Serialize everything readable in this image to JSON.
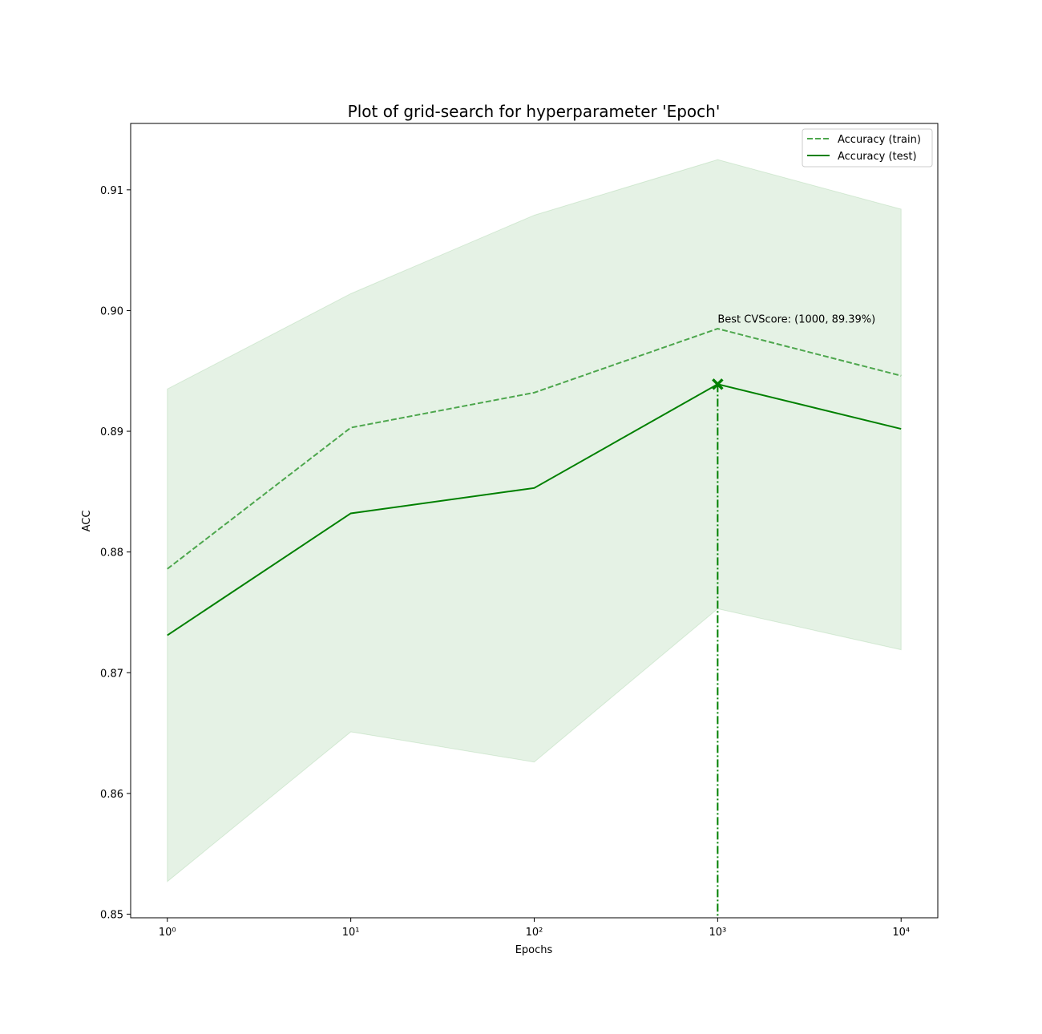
{
  "chart_data": {
    "type": "line",
    "title": "Plot of grid-search for hyperparameter 'Epoch'",
    "xlabel": "Epochs",
    "ylabel": "ACC",
    "x": [
      1,
      10,
      100,
      1000,
      10000
    ],
    "xscale": "log",
    "xlim": [
      0.631,
      15849
    ],
    "ylim": [
      0.8497,
      0.9155
    ],
    "xticks": [
      {
        "value": 1,
        "label": "10⁰"
      },
      {
        "value": 10,
        "label": "10¹"
      },
      {
        "value": 100,
        "label": "10²"
      },
      {
        "value": 1000,
        "label": "10³"
      },
      {
        "value": 10000,
        "label": "10⁴"
      }
    ],
    "yticks": [
      0.85,
      0.86,
      0.87,
      0.88,
      0.89,
      {
        "value": 0.9,
        "label": "0.90"
      },
      0.91
    ],
    "legend": "upper right",
    "series": [
      {
        "name": "Accuracy (train)",
        "color": "#4ca64c",
        "dash": "dashed",
        "values": [
          0.8786,
          0.8903,
          0.8932,
          0.8985,
          0.8946
        ]
      },
      {
        "name": "Accuracy (test)",
        "color": "#008000",
        "dash": "solid",
        "values": [
          0.8731,
          0.8832,
          0.8853,
          0.8939,
          0.8902
        ]
      }
    ],
    "band": {
      "color": "#008000",
      "upper": [
        0.8935,
        0.9014,
        0.9079,
        0.9125,
        0.9084
      ],
      "lower": [
        0.8527,
        0.8651,
        0.8626,
        0.8753,
        0.8719
      ]
    },
    "best": {
      "x": 1000,
      "y": 0.8939,
      "color": "#008000",
      "annotation": "Best CVScore: (1000, 89.39%)"
    }
  }
}
